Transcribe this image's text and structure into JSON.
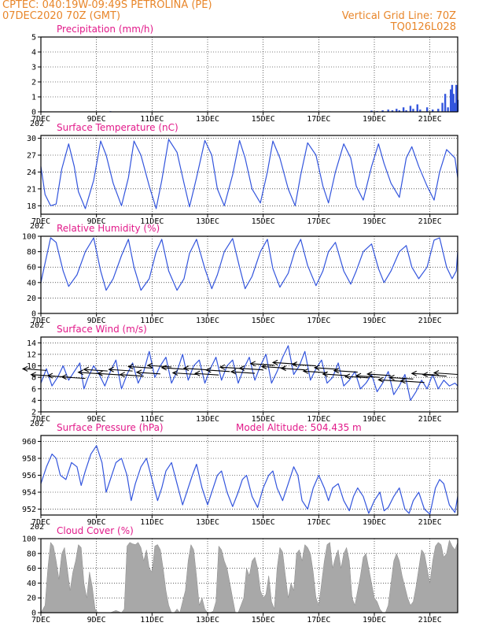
{
  "header": {
    "line1": "CPTEC:   040:19W-09:49S   PETROLINA (PE)",
    "line2": "07DEC2020 70Z (GMT)",
    "right1": "Vertical Grid Line: 70Z",
    "right2": "TQ0126L028"
  },
  "colors": {
    "line": "#3355dd",
    "title": "#e21a8a",
    "header": "#e8862a",
    "cloud": "#a8a8a8"
  },
  "x_labels": [
    "7DEC",
    "9DEC",
    "11DEC",
    "13DEC",
    "15DEC",
    "17DEC",
    "19DEC",
    "21DEC"
  ],
  "chart_data": [
    {
      "id": "precip",
      "type": "bar",
      "title": "Precipitation (mm/h)",
      "ylim": [
        0,
        5
      ],
      "yticks": [
        0,
        1,
        2,
        3,
        4,
        5
      ],
      "x_range_days": [
        7,
        22
      ],
      "bars": [
        [
          7.1,
          0.03
        ],
        [
          8.3,
          0.02
        ],
        [
          9.5,
          0.04
        ],
        [
          10.6,
          0.03
        ],
        [
          11.9,
          0.02
        ],
        [
          13.2,
          0.03
        ],
        [
          14.4,
          0.02
        ],
        [
          15.6,
          0.03
        ],
        [
          16.9,
          0.02
        ],
        [
          17.4,
          0.03
        ],
        [
          18.2,
          0.02
        ],
        [
          18.9,
          0.08
        ],
        [
          19.1,
          0.05
        ],
        [
          19.3,
          0.1
        ],
        [
          19.5,
          0.15
        ],
        [
          19.65,
          0.1
        ],
        [
          19.8,
          0.2
        ],
        [
          19.9,
          0.1
        ],
        [
          20.05,
          0.3
        ],
        [
          20.15,
          0.1
        ],
        [
          20.3,
          0.4
        ],
        [
          20.4,
          0.2
        ],
        [
          20.55,
          0.5
        ],
        [
          20.65,
          0.15
        ],
        [
          20.9,
          0.3
        ],
        [
          21.1,
          0.15
        ],
        [
          21.3,
          0.2
        ],
        [
          21.45,
          0.6
        ],
        [
          21.55,
          1.2
        ],
        [
          21.65,
          0.3
        ],
        [
          21.75,
          1.5
        ],
        [
          21.8,
          1.8
        ],
        [
          21.85,
          1.2
        ],
        [
          21.9,
          0.6
        ],
        [
          21.95,
          1.8
        ],
        [
          22.0,
          0.8
        ]
      ]
    },
    {
      "id": "temp",
      "type": "line",
      "title": "Surface Temperature (nC)",
      "ylim": [
        16.5,
        30.5
      ],
      "yticks": [
        18,
        21,
        24,
        27,
        30
      ],
      "x_range_days": [
        7,
        22
      ],
      "x": [
        7.0,
        7.15,
        7.35,
        7.55,
        7.75,
        8.0,
        8.2,
        8.35,
        8.6,
        8.9,
        9.15,
        9.35,
        9.6,
        9.9,
        10.15,
        10.35,
        10.6,
        10.9,
        11.15,
        11.35,
        11.6,
        11.9,
        12.15,
        12.35,
        12.6,
        12.9,
        13.15,
        13.35,
        13.6,
        13.9,
        14.15,
        14.35,
        14.6,
        14.9,
        15.15,
        15.35,
        15.6,
        15.9,
        16.15,
        16.35,
        16.6,
        16.9,
        17.15,
        17.35,
        17.6,
        17.9,
        18.15,
        18.35,
        18.6,
        18.9,
        19.15,
        19.35,
        19.6,
        19.9,
        20.15,
        20.35,
        20.6,
        20.9,
        21.15,
        21.35,
        21.6,
        21.9,
        22.0
      ],
      "y": [
        25.0,
        20.0,
        18.0,
        18.3,
        24.5,
        29.0,
        25.0,
        20.5,
        17.5,
        22.5,
        29.5,
        27.0,
        22.0,
        18.0,
        23.0,
        29.5,
        27.0,
        21.5,
        17.5,
        22.5,
        29.8,
        27.5,
        22.0,
        17.8,
        23.0,
        29.6,
        27.0,
        21.0,
        18.0,
        23.5,
        29.6,
        26.5,
        21.0,
        18.5,
        24.0,
        29.5,
        26.5,
        21.0,
        18.0,
        23.5,
        29.2,
        27.0,
        21.5,
        18.5,
        24.0,
        29.0,
        26.5,
        21.5,
        19.0,
        25.0,
        29.0,
        25.5,
        22.0,
        19.5,
        26.5,
        28.5,
        25.0,
        21.5,
        19.0,
        24.0,
        28.0,
        26.5,
        23.0
      ]
    },
    {
      "id": "rh",
      "type": "line",
      "title": "Relative Humidity (%)",
      "ylim": [
        0,
        100
      ],
      "yticks": [
        0,
        20,
        40,
        60,
        80,
        100
      ],
      "x_range_days": [
        7,
        22
      ],
      "x": [
        7.0,
        7.15,
        7.35,
        7.55,
        7.8,
        8.0,
        8.3,
        8.6,
        8.9,
        9.15,
        9.35,
        9.6,
        9.9,
        10.15,
        10.35,
        10.6,
        10.9,
        11.15,
        11.35,
        11.6,
        11.9,
        12.15,
        12.35,
        12.6,
        12.9,
        13.15,
        13.35,
        13.6,
        13.9,
        14.15,
        14.35,
        14.6,
        14.9,
        15.15,
        15.35,
        15.6,
        15.9,
        16.15,
        16.35,
        16.6,
        16.9,
        17.15,
        17.35,
        17.6,
        17.9,
        18.15,
        18.35,
        18.6,
        18.9,
        19.15,
        19.35,
        19.6,
        19.9,
        20.15,
        20.35,
        20.6,
        20.9,
        21.15,
        21.35,
        21.6,
        21.8,
        21.95,
        22.0
      ],
      "y": [
        40,
        65,
        98,
        92,
        55,
        35,
        50,
        80,
        98,
        55,
        30,
        45,
        75,
        96,
        60,
        30,
        45,
        80,
        96,
        55,
        30,
        45,
        78,
        96,
        58,
        32,
        50,
        80,
        97,
        60,
        32,
        48,
        80,
        96,
        58,
        34,
        52,
        82,
        96,
        62,
        36,
        55,
        80,
        92,
        55,
        38,
        55,
        80,
        90,
        58,
        40,
        55,
        80,
        88,
        60,
        45,
        60,
        95,
        98,
        60,
        45,
        55,
        80
      ]
    },
    {
      "id": "wind",
      "type": "line",
      "title": "Surface Wind (m/s)",
      "ylim": [
        2,
        15
      ],
      "yticks": [
        2,
        4,
        6,
        8,
        10,
        12,
        14
      ],
      "x_range_days": [
        7,
        22
      ],
      "x": [
        7.0,
        7.2,
        7.4,
        7.6,
        7.8,
        8.0,
        8.2,
        8.4,
        8.55,
        8.7,
        8.9,
        9.1,
        9.3,
        9.5,
        9.7,
        9.9,
        10.1,
        10.3,
        10.5,
        10.7,
        10.9,
        11.1,
        11.3,
        11.5,
        11.7,
        11.9,
        12.1,
        12.3,
        12.5,
        12.7,
        12.9,
        13.1,
        13.3,
        13.5,
        13.7,
        13.9,
        14.1,
        14.3,
        14.5,
        14.7,
        14.9,
        15.1,
        15.3,
        15.5,
        15.7,
        15.9,
        16.1,
        16.3,
        16.5,
        16.7,
        16.9,
        17.1,
        17.3,
        17.5,
        17.7,
        17.9,
        18.1,
        18.3,
        18.5,
        18.7,
        18.9,
        19.1,
        19.3,
        19.5,
        19.7,
        19.9,
        20.1,
        20.3,
        20.5,
        20.7,
        20.9,
        21.1,
        21.3,
        21.5,
        21.7,
        21.9,
        22.0
      ],
      "y": [
        7.0,
        9.5,
        6.5,
        8.0,
        10.0,
        7.5,
        9.0,
        10.5,
        6.0,
        8.0,
        10.0,
        8.5,
        6.5,
        9.0,
        11.0,
        6.0,
        8.5,
        10.5,
        7.0,
        9.0,
        12.5,
        8.0,
        10.0,
        11.5,
        7.0,
        9.0,
        12.0,
        7.5,
        10.0,
        11.0,
        7.0,
        9.5,
        11.5,
        7.5,
        10.0,
        11.0,
        7.0,
        9.5,
        11.5,
        7.5,
        10.0,
        12.0,
        7.0,
        9.0,
        11.5,
        13.5,
        8.5,
        10.0,
        12.5,
        7.5,
        9.5,
        11.0,
        7.0,
        8.0,
        10.5,
        6.5,
        7.5,
        9.0,
        6.0,
        7.0,
        8.5,
        5.5,
        7.0,
        9.0,
        5.0,
        6.5,
        8.5,
        4.0,
        5.5,
        7.5,
        6.0,
        8.5,
        6.0,
        7.5,
        6.5,
        7.0,
        6.5
      ],
      "arrows": [
        [
          7.2,
          9.2
        ],
        [
          7.5,
          8.2
        ],
        [
          8.1,
          8.0
        ],
        [
          8.6,
          7.8
        ],
        [
          9.2,
          8.6
        ],
        [
          9.4,
          9.1
        ],
        [
          9.9,
          8.4
        ],
        [
          10.3,
          9.1
        ],
        [
          10.7,
          8.2
        ],
        [
          11.0,
          9.6
        ],
        [
          11.3,
          8.6
        ],
        [
          11.7,
          9.8
        ],
        [
          12.2,
          9.4
        ],
        [
          12.6,
          8.5
        ],
        [
          13.0,
          9.3
        ],
        [
          13.4,
          8.4
        ],
        [
          13.8,
          9.0
        ],
        [
          14.3,
          9.5
        ],
        [
          14.7,
          8.7
        ],
        [
          15.0,
          9.3
        ],
        [
          15.4,
          10.1
        ],
        [
          15.8,
          9.6
        ],
        [
          16.2,
          10.3
        ],
        [
          16.5,
          9.3
        ],
        [
          16.9,
          10.0
        ],
        [
          17.3,
          8.8
        ],
        [
          17.7,
          9.4
        ],
        [
          18.0,
          8.3
        ],
        [
          18.4,
          8.9
        ],
        [
          18.8,
          7.9
        ],
        [
          19.2,
          8.0
        ],
        [
          19.6,
          8.3
        ],
        [
          20.0,
          7.3
        ],
        [
          20.4,
          7.7
        ],
        [
          20.8,
          7.1
        ],
        [
          21.2,
          8.4
        ],
        [
          21.6,
          8.2
        ],
        [
          22.0,
          8.5
        ]
      ]
    },
    {
      "id": "pressure",
      "type": "line",
      "title": "Surface Pressure (hPa)",
      "subtitle": "Model Altitude: 504.435 m",
      "ylim": [
        951.3,
        960.7
      ],
      "yticks": [
        952,
        954,
        956,
        958,
        960
      ],
      "x_range_days": [
        7,
        22
      ],
      "x": [
        7.0,
        7.2,
        7.4,
        7.55,
        7.7,
        7.9,
        8.1,
        8.3,
        8.45,
        8.6,
        8.8,
        9.0,
        9.2,
        9.35,
        9.5,
        9.7,
        9.9,
        10.1,
        10.25,
        10.4,
        10.6,
        10.8,
        11.0,
        11.2,
        11.35,
        11.5,
        11.7,
        11.9,
        12.1,
        12.3,
        12.45,
        12.6,
        12.8,
        13.0,
        13.2,
        13.35,
        13.5,
        13.7,
        13.9,
        14.1,
        14.25,
        14.4,
        14.6,
        14.8,
        15.0,
        15.2,
        15.35,
        15.5,
        15.7,
        15.9,
        16.1,
        16.25,
        16.4,
        16.6,
        16.8,
        17.0,
        17.2,
        17.35,
        17.5,
        17.7,
        17.9,
        18.1,
        18.25,
        18.4,
        18.6,
        18.8,
        19.0,
        19.2,
        19.35,
        19.5,
        19.7,
        19.9,
        20.1,
        20.25,
        20.4,
        20.6,
        20.8,
        21.0,
        21.2,
        21.35,
        21.5,
        21.7,
        21.9,
        22.0
      ],
      "y": [
        955.0,
        957.0,
        958.5,
        958.0,
        956.0,
        955.5,
        957.5,
        957.0,
        954.8,
        956.5,
        958.5,
        959.5,
        957.5,
        954.0,
        955.5,
        957.5,
        958.0,
        956.0,
        953.0,
        955.0,
        957.0,
        958.0,
        955.5,
        953.0,
        954.5,
        956.5,
        957.5,
        955.0,
        952.5,
        954.5,
        956.0,
        957.3,
        954.5,
        952.5,
        954.5,
        956.0,
        956.5,
        954.0,
        952.3,
        954.0,
        955.5,
        956.0,
        953.5,
        952.2,
        954.5,
        956.0,
        956.5,
        954.5,
        953.0,
        955.0,
        957.0,
        956.0,
        953.0,
        952.0,
        954.5,
        956.0,
        954.5,
        953.0,
        954.5,
        955.0,
        953.0,
        951.8,
        953.5,
        954.5,
        953.5,
        951.5,
        953.0,
        954.0,
        951.8,
        952.2,
        953.5,
        954.5,
        952.0,
        951.5,
        953.0,
        954.0,
        952.0,
        951.4,
        954.5,
        955.5,
        955.0,
        952.5,
        951.6,
        953.5
      ]
    },
    {
      "id": "cloud",
      "type": "area",
      "title": "Cloud Cover (%)",
      "ylim": [
        0,
        100
      ],
      "yticks": [
        0,
        20,
        40,
        60,
        80,
        100
      ],
      "x_range_days": [
        7,
        22
      ],
      "x": [
        7.0,
        7.15,
        7.25,
        7.35,
        7.45,
        7.55,
        7.65,
        7.75,
        7.85,
        7.95,
        8.05,
        8.15,
        8.25,
        8.35,
        8.45,
        8.55,
        8.65,
        8.75,
        8.85,
        8.95,
        9.05,
        9.15,
        9.3,
        9.5,
        9.7,
        9.9,
        10.0,
        10.1,
        10.2,
        10.3,
        10.4,
        10.5,
        10.6,
        10.7,
        10.8,
        10.9,
        11.0,
        11.1,
        11.2,
        11.3,
        11.4,
        11.5,
        11.6,
        11.7,
        11.8,
        11.9,
        12.0,
        12.1,
        12.2,
        12.3,
        12.4,
        12.5,
        12.6,
        12.7,
        12.8,
        12.9,
        13.0,
        13.1,
        13.2,
        13.3,
        13.4,
        13.5,
        13.6,
        13.7,
        13.8,
        13.9,
        14.0,
        14.1,
        14.2,
        14.3,
        14.4,
        14.5,
        14.6,
        14.7,
        14.8,
        14.9,
        15.0,
        15.1,
        15.2,
        15.3,
        15.4,
        15.5,
        15.6,
        15.7,
        15.8,
        15.9,
        16.0,
        16.1,
        16.2,
        16.3,
        16.4,
        16.5,
        16.6,
        16.7,
        16.8,
        16.9,
        17.0,
        17.1,
        17.2,
        17.3,
        17.4,
        17.5,
        17.6,
        17.7,
        17.8,
        17.9,
        18.0,
        18.1,
        18.2,
        18.3,
        18.4,
        18.5,
        18.6,
        18.7,
        18.8,
        18.9,
        19.0,
        19.1,
        19.2,
        19.3,
        19.4,
        19.5,
        19.6,
        19.7,
        19.8,
        19.9,
        20.0,
        20.1,
        20.2,
        20.3,
        20.4,
        20.5,
        20.6,
        20.7,
        20.8,
        20.9,
        21.0,
        21.1,
        21.2,
        21.3,
        21.4,
        21.5,
        21.6,
        21.7,
        21.8,
        21.9,
        22.0
      ],
      "y": [
        0,
        10,
        60,
        95,
        90,
        70,
        45,
        80,
        88,
        60,
        30,
        55,
        70,
        92,
        88,
        40,
        20,
        55,
        35,
        5,
        0,
        0,
        0,
        0,
        3,
        0,
        5,
        90,
        95,
        93,
        92,
        95,
        88,
        70,
        85,
        60,
        55,
        90,
        92,
        85,
        60,
        30,
        10,
        0,
        0,
        5,
        0,
        15,
        30,
        70,
        92,
        85,
        50,
        10,
        20,
        5,
        0,
        0,
        2,
        15,
        90,
        85,
        70,
        60,
        40,
        20,
        0,
        0,
        10,
        20,
        60,
        50,
        70,
        75,
        60,
        30,
        20,
        25,
        50,
        15,
        5,
        60,
        88,
        82,
        50,
        20,
        40,
        30,
        80,
        85,
        70,
        92,
        88,
        80,
        55,
        20,
        10,
        40,
        70,
        92,
        95,
        60,
        75,
        85,
        60,
        80,
        88,
        70,
        20,
        10,
        30,
        50,
        75,
        80,
        60,
        40,
        20,
        15,
        5,
        0,
        0,
        10,
        40,
        70,
        80,
        70,
        50,
        35,
        20,
        10,
        15,
        35,
        60,
        85,
        80,
        60,
        40,
        70,
        90,
        95,
        92,
        75,
        80,
        98,
        90,
        85,
        95
      ]
    }
  ]
}
